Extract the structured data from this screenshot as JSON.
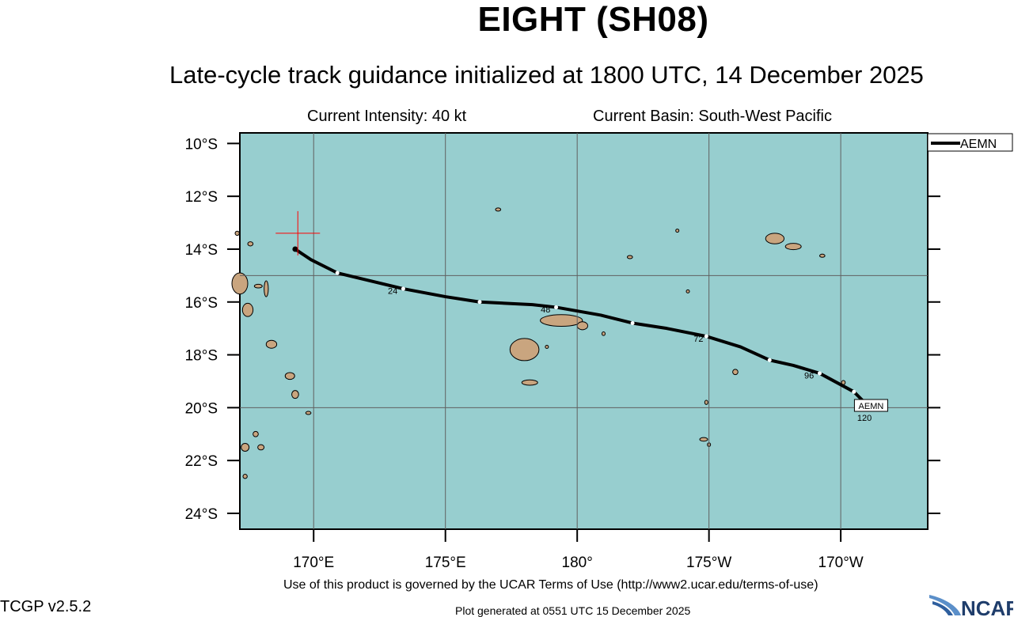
{
  "title": "EIGHT (SH08)",
  "subtitle": "Late-cycle track guidance initialized at 1800 UTC, 14 December 2025",
  "current_intensity": "Current Intensity: 40 kt",
  "current_basin": "Current Basin: South-West Pacific",
  "footer": {
    "terms": "Use of this product is governed by the UCAR Terms of Use (http://www2.ucar.edu/terms-of-use)",
    "version": "TCGP v2.5.2",
    "generated": "Plot generated at 0551 UTC   15 December 2025",
    "logo_text": "NCAR"
  },
  "legend": [
    {
      "label": "AEMN",
      "color": "#000000"
    }
  ],
  "map": {
    "ocean_color": "#97cecf",
    "land_color": "#c9a57f",
    "grid_color": "#606060",
    "lon_range_deg_east": [
      167.2,
      193.3
    ],
    "lat_range": [
      -24.6,
      -9.6
    ],
    "lat_ticks": [
      {
        "lat": -10,
        "label": "10°S"
      },
      {
        "lat": -12,
        "label": "12°S"
      },
      {
        "lat": -14,
        "label": "14°S"
      },
      {
        "lat": -16,
        "label": "16°S"
      },
      {
        "lat": -18,
        "label": "18°S"
      },
      {
        "lat": -20,
        "label": "20°S"
      },
      {
        "lat": -22,
        "label": "22°S"
      },
      {
        "lat": -24,
        "label": "24°S"
      }
    ],
    "lon_ticks": [
      {
        "lon": 170,
        "label": "170°E"
      },
      {
        "lon": 175,
        "label": "175°E"
      },
      {
        "lon": 180,
        "label": "180°"
      },
      {
        "lon": 185,
        "label": "175°W"
      },
      {
        "lon": 190,
        "label": "170°W"
      }
    ],
    "grid_lats": [
      -15,
      -20
    ],
    "grid_lons": [
      170,
      175,
      180,
      185,
      190
    ],
    "current_position": {
      "lon": 169.4,
      "lat": -13.4,
      "color": "#ff0000"
    },
    "track": {
      "model": "AEMN",
      "points": [
        {
          "lon": 169.3,
          "lat": -14.0,
          "hour": 0
        },
        {
          "lon": 169.9,
          "lat": -14.4
        },
        {
          "lon": 170.9,
          "lat": -14.9,
          "hour": 12
        },
        {
          "lon": 173.4,
          "lat": -15.5,
          "hour": 24
        },
        {
          "lon": 175.0,
          "lat": -15.8
        },
        {
          "lon": 176.3,
          "lat": -16.0,
          "hour": 36
        },
        {
          "lon": 178.3,
          "lat": -16.1
        },
        {
          "lon": 179.2,
          "lat": -16.2,
          "hour": 48
        },
        {
          "lon": 180.9,
          "lat": -16.5
        },
        {
          "lon": 182.1,
          "lat": -16.8,
          "hour": 60
        },
        {
          "lon": 183.4,
          "lat": -17.0
        },
        {
          "lon": 184.9,
          "lat": -17.3,
          "hour": 72
        },
        {
          "lon": 186.2,
          "lat": -17.7
        },
        {
          "lon": 187.3,
          "lat": -18.2,
          "hour": 84
        },
        {
          "lon": 188.2,
          "lat": -18.4
        },
        {
          "lon": 189.2,
          "lat": -18.7,
          "hour": 96
        },
        {
          "lon": 190.5,
          "lat": -19.4,
          "hour": 108
        },
        {
          "lon": 191.0,
          "lat": -19.9,
          "hour": 120
        }
      ],
      "hour_labels": [
        {
          "text": "24",
          "lon": 173.0,
          "lat": -15.7
        },
        {
          "text": "48",
          "lon": 178.8,
          "lat": -16.4
        },
        {
          "text": "72",
          "lon": 184.6,
          "lat": -17.5
        },
        {
          "text": "96",
          "lon": 188.8,
          "lat": -18.9
        },
        {
          "text": "120",
          "lon": 190.9,
          "lat": -20.5
        }
      ],
      "end_label": "AEMN"
    },
    "islands": [
      {
        "name": "viti-levu",
        "lon": 178.0,
        "lat": -17.8,
        "rx": 0.55,
        "ry": 0.42
      },
      {
        "name": "vanua-levu",
        "lon": 179.4,
        "lat": -16.7,
        "rx": 0.8,
        "ry": 0.22
      },
      {
        "name": "taveuni",
        "lon": 180.2,
        "lat": -16.9,
        "rx": 0.2,
        "ry": 0.15
      },
      {
        "name": "kadavu",
        "lon": 178.2,
        "lat": -19.05,
        "rx": 0.3,
        "ry": 0.1
      },
      {
        "name": "savaii",
        "lon": 187.5,
        "lat": -13.6,
        "rx": 0.35,
        "ry": 0.2
      },
      {
        "name": "upolu",
        "lon": 188.2,
        "lat": -13.9,
        "rx": 0.3,
        "ry": 0.12
      },
      {
        "name": "espiritu-santo",
        "lon": 167.2,
        "lat": -15.3,
        "rx": 0.3,
        "ry": 0.4
      },
      {
        "name": "malekula",
        "lon": 167.5,
        "lat": -16.3,
        "rx": 0.2,
        "ry": 0.25
      },
      {
        "name": "efate",
        "lon": 168.4,
        "lat": -17.6,
        "rx": 0.2,
        "ry": 0.15
      },
      {
        "name": "erromango",
        "lon": 169.1,
        "lat": -18.8,
        "rx": 0.18,
        "ry": 0.13
      },
      {
        "name": "tanna",
        "lon": 169.3,
        "lat": -19.5,
        "rx": 0.13,
        "ry": 0.15
      },
      {
        "name": "new-caledonia-north",
        "lon": 167.4,
        "lat": -21.5,
        "rx": 0.15,
        "ry": 0.15
      },
      {
        "name": "pentecost",
        "lon": 168.2,
        "lat": -15.5,
        "rx": 0.08,
        "ry": 0.3
      },
      {
        "name": "vava-u",
        "lon": 186.0,
        "lat": -18.65,
        "rx": 0.1,
        "ry": 0.1
      },
      {
        "name": "niuafo-ou",
        "lon": 184.2,
        "lat": -15.6,
        "rx": 0.05,
        "ry": 0.05
      },
      {
        "name": "futuna",
        "lon": 182.0,
        "lat": -14.3,
        "rx": 0.1,
        "ry": 0.05
      },
      {
        "name": "wallis",
        "lon": 183.8,
        "lat": -13.3,
        "rx": 0.05,
        "ry": 0.06
      },
      {
        "name": "rotuma",
        "lon": 177.0,
        "lat": -12.5,
        "rx": 0.1,
        "ry": 0.04
      },
      {
        "name": "tongatapu",
        "lon": 184.8,
        "lat": -21.2,
        "rx": 0.15,
        "ry": 0.07
      },
      {
        "name": "eua",
        "lon": 185.0,
        "lat": -21.4,
        "rx": 0.05,
        "ry": 0.07
      },
      {
        "name": "ha-apai",
        "lon": 184.9,
        "lat": -19.8,
        "rx": 0.05,
        "ry": 0.08
      },
      {
        "name": "lau-vanua-balavu",
        "lon": 181.0,
        "lat": -17.2,
        "rx": 0.06,
        "ry": 0.07
      },
      {
        "name": "niue",
        "lon": 190.1,
        "lat": -19.05,
        "rx": 0.07,
        "ry": 0.08
      },
      {
        "name": "tutuila",
        "lon": 189.3,
        "lat": -14.25,
        "rx": 0.1,
        "ry": 0.04
      },
      {
        "name": "ovalau",
        "lon": 178.85,
        "lat": -17.7,
        "rx": 0.06,
        "ry": 0.06
      },
      {
        "name": "torres",
        "lon": 167.1,
        "lat": -13.4,
        "rx": 0.08,
        "ry": 0.08
      },
      {
        "name": "banks",
        "lon": 167.6,
        "lat": -13.8,
        "rx": 0.1,
        "ry": 0.08
      },
      {
        "name": "ambae",
        "lon": 167.9,
        "lat": -15.4,
        "rx": 0.15,
        "ry": 0.07
      },
      {
        "name": "loyalty-lifou",
        "lon": 167.8,
        "lat": -21.0,
        "rx": 0.1,
        "ry": 0.1
      },
      {
        "name": "loyalty-mare",
        "lon": 168.0,
        "lat": -21.5,
        "rx": 0.12,
        "ry": 0.1
      },
      {
        "name": "aneityum",
        "lon": 169.8,
        "lat": -20.2,
        "rx": 0.1,
        "ry": 0.05
      },
      {
        "name": "isle-of-pines",
        "lon": 167.4,
        "lat": -22.6,
        "rx": 0.08,
        "ry": 0.08
      }
    ]
  }
}
